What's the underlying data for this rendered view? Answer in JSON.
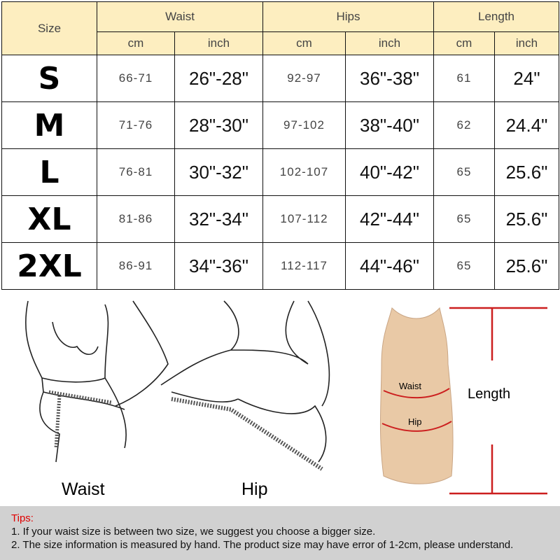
{
  "table": {
    "headers": {
      "size": "Size",
      "waist": "Waist",
      "hips": "Hips",
      "length": "Length",
      "cm": "cm",
      "inch": "inch"
    },
    "rows": [
      {
        "size": "S",
        "waist_cm": "66-71",
        "waist_inch": "26\"-28\"",
        "hips_cm": "92-97",
        "hips_inch": "36\"-38\"",
        "length_cm": "61",
        "length_inch": "24\""
      },
      {
        "size": "M",
        "waist_cm": "71-76",
        "waist_inch": "28\"-30\"",
        "hips_cm": "97-102",
        "hips_inch": "38\"-40\"",
        "length_cm": "62",
        "length_inch": "24.4\""
      },
      {
        "size": "L",
        "waist_cm": "76-81",
        "waist_inch": "30\"-32\"",
        "hips_cm": "102-107",
        "hips_inch": "40\"-42\"",
        "length_cm": "65",
        "length_inch": "25.6\""
      },
      {
        "size": "XL",
        "waist_cm": "81-86",
        "waist_inch": "32\"-34\"",
        "hips_cm": "107-112",
        "hips_inch": "42\"-44\"",
        "length_cm": "65",
        "length_inch": "25.6\""
      },
      {
        "size": "2XL",
        "waist_cm": "86-91",
        "waist_inch": "34\"-36\"",
        "hips_cm": "112-117",
        "hips_inch": "44\"-46\"",
        "length_cm": "65",
        "length_inch": "25.6\""
      }
    ]
  },
  "illustrations": {
    "waist_label": "Waist",
    "hip_label": "Hip",
    "dress_waist": "Waist",
    "dress_hip": "Hip",
    "length_label": "Length",
    "accent": "#cc1f1f",
    "dress_color": "#e9c9a6"
  },
  "tips": {
    "title": "Tips:",
    "items": [
      "1. If your waist size is between two size, we suggest you choose a bigger size.",
      "2. The size information is measured by hand. The product size may have error of 1-2cm, please understand."
    ]
  }
}
